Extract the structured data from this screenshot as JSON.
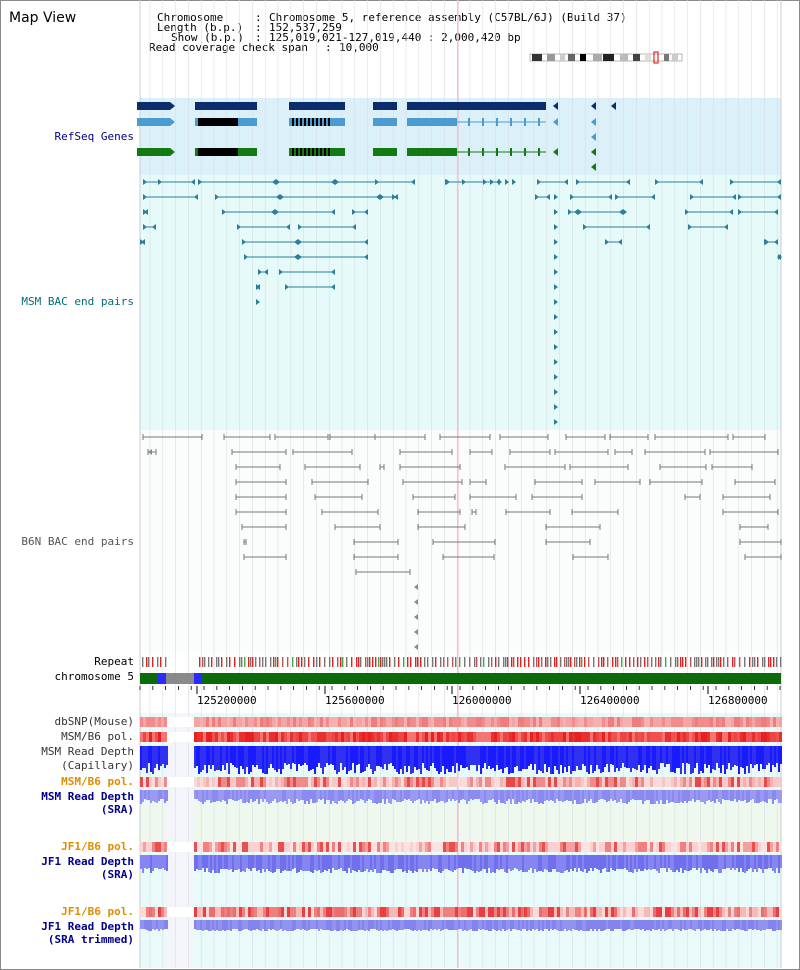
{
  "view_title": "Map View",
  "info": {
    "chromosome_label": "Chromosome",
    "chromosome_value": "Chromosome 5, reference assembly (C57BL/6J) (Build 37)",
    "length_label": "Length (b.p.)",
    "length_value": "152,537,259",
    "show_label": "Show (b.p.)",
    "show_value": "125,019,021-127,019,440 : 2,000,420 bp",
    "coverage_label": "Read coverage check span",
    "coverage_value": "10,000"
  },
  "tracks": {
    "refseq": "RefSeq Genes",
    "msm_bac": "MSM BAC end pairs",
    "b6n_bac": "B6N BAC end pairs",
    "repeat": "Repeat",
    "chromosome": "chromosome 5",
    "dbsnp": "dbSNP(Mouse)",
    "msm_b6_pol_1": "MSM/B6 pol.",
    "msm_read_depth_cap_1": "MSM Read Depth",
    "msm_read_depth_cap_2": "(Capillary)",
    "msm_b6_pol_2": "MSM/B6 pol.",
    "msm_read_depth_sra_1": "MSM Read Depth",
    "msm_read_depth_sra_2": "(SRA)",
    "jf1_b6_pol_1": "JF1/B6 pol.",
    "jf1_read_depth_sra_1": "JF1 Read Depth",
    "jf1_read_depth_sra_2": "(SRA)",
    "jf1_b6_pol_2": "JF1/B6 pol.",
    "jf1_read_depth_trim_1": "JF1 Read Depth",
    "jf1_read_depth_trim_2": "(SRA trimmed)"
  },
  "axis_ticks": [
    "125200000",
    "125600000",
    "126000000",
    "126400000",
    "126800000"
  ],
  "colors": {
    "refseq_label": "#000080",
    "msm_label": "#006e7a",
    "b6n_label": "#555555",
    "orange_label": "#e08c00",
    "blue_label": "#00008b",
    "refseq_bg": "#dcf0fa",
    "track_bg": "#e6fafa",
    "navy_gene": "#0b2d6b",
    "lightblue_gene": "#4b9bd0",
    "green_gene": "#137a13",
    "msm_feature": "#2a7f9a",
    "b6n_feature": "#777777",
    "chrom_green": "#0b6b0b"
  }
}
